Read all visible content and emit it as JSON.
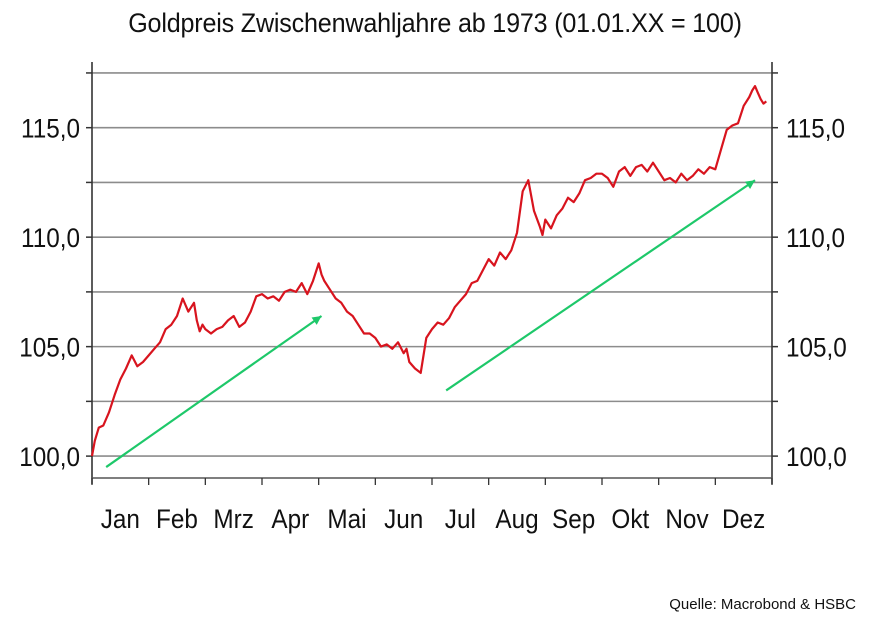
{
  "chart_data": {
    "type": "line",
    "title": "Goldpreis Zwischenwahljahre ab 1973 (01.01.XX = 100)",
    "source": "Quelle: Macrobond & HSBC",
    "months": [
      "Jan",
      "Feb",
      "Mrz",
      "Apr",
      "Mai",
      "Jun",
      "Jul",
      "Aug",
      "Sep",
      "Okt",
      "Nov",
      "Dez"
    ],
    "y_ticks": [
      "100,0",
      "105,0",
      "110,0",
      "115,0"
    ],
    "ylim": [
      99.0,
      118.0
    ],
    "xlim": [
      0,
      12
    ],
    "grid": true,
    "series": [
      {
        "color": "#d8141e",
        "x": [
          0.0,
          0.05,
          0.12,
          0.2,
          0.3,
          0.4,
          0.5,
          0.6,
          0.7,
          0.8,
          0.9,
          1.0,
          1.1,
          1.2,
          1.3,
          1.4,
          1.5,
          1.6,
          1.7,
          1.8,
          1.85,
          1.9,
          1.95,
          2.0,
          2.1,
          2.2,
          2.3,
          2.4,
          2.5,
          2.6,
          2.7,
          2.8,
          2.9,
          3.0,
          3.1,
          3.2,
          3.3,
          3.4,
          3.5,
          3.6,
          3.7,
          3.8,
          3.9,
          4.0,
          4.05,
          4.1,
          4.2,
          4.3,
          4.4,
          4.5,
          4.6,
          4.7,
          4.8,
          4.9,
          5.0,
          5.1,
          5.2,
          5.3,
          5.4,
          5.5,
          5.55,
          5.6,
          5.7,
          5.8,
          5.9,
          6.0,
          6.1,
          6.2,
          6.3,
          6.4,
          6.5,
          6.6,
          6.7,
          6.8,
          6.9,
          7.0,
          7.1,
          7.2,
          7.3,
          7.4,
          7.5,
          7.6,
          7.7,
          7.8,
          7.9,
          7.95,
          8.0,
          8.1,
          8.2,
          8.3,
          8.4,
          8.5,
          8.6,
          8.7,
          8.8,
          8.9,
          9.0,
          9.1,
          9.2,
          9.3,
          9.4,
          9.5,
          9.6,
          9.7,
          9.8,
          9.9,
          10.0,
          10.1,
          10.2,
          10.3,
          10.4,
          10.5,
          10.6,
          10.7,
          10.8,
          10.9,
          11.0,
          11.1,
          11.2,
          11.3,
          11.4,
          11.5,
          11.6,
          11.65,
          11.7,
          11.75,
          11.8,
          11.85,
          11.9
        ],
        "values": [
          100.0,
          100.7,
          101.3,
          101.4,
          102.0,
          102.8,
          103.5,
          104.0,
          104.6,
          104.1,
          104.3,
          104.6,
          104.9,
          105.2,
          105.8,
          106.0,
          106.4,
          107.2,
          106.6,
          107.0,
          106.2,
          105.7,
          106.0,
          105.8,
          105.6,
          105.8,
          105.9,
          106.2,
          106.4,
          105.9,
          106.1,
          106.6,
          107.3,
          107.4,
          107.2,
          107.3,
          107.1,
          107.5,
          107.6,
          107.5,
          107.9,
          107.4,
          108.0,
          108.8,
          108.3,
          108.0,
          107.6,
          107.2,
          107.0,
          106.6,
          106.4,
          106.0,
          105.6,
          105.6,
          105.4,
          105.0,
          105.1,
          104.9,
          105.2,
          104.7,
          104.9,
          104.3,
          104.0,
          103.8,
          105.4,
          105.8,
          106.1,
          106.0,
          106.3,
          106.8,
          107.1,
          107.4,
          107.9,
          108.0,
          108.5,
          109.0,
          108.7,
          109.3,
          109.0,
          109.4,
          110.2,
          112.1,
          112.6,
          111.2,
          110.5,
          110.1,
          110.8,
          110.4,
          111.0,
          111.3,
          111.8,
          111.6,
          112.0,
          112.6,
          112.7,
          112.9,
          112.9,
          112.7,
          112.3,
          113.0,
          113.2,
          112.8,
          113.2,
          113.3,
          113.0,
          113.4,
          113.0,
          112.6,
          112.7,
          112.5,
          112.9,
          112.6,
          112.8,
          113.1,
          112.9,
          113.2,
          113.1,
          114.0,
          114.9,
          115.1,
          115.2,
          116.0,
          116.4,
          116.7,
          116.9,
          116.6,
          116.3,
          116.1,
          116.2
        ]
      },
      {
        "color": "#1ec86a",
        "x": [
          0.25,
          4.05
        ],
        "values": [
          99.5,
          106.4
        ]
      },
      {
        "color": "#1ec86a",
        "x": [
          6.25,
          11.7
        ],
        "values": [
          103.0,
          112.6
        ]
      }
    ]
  }
}
